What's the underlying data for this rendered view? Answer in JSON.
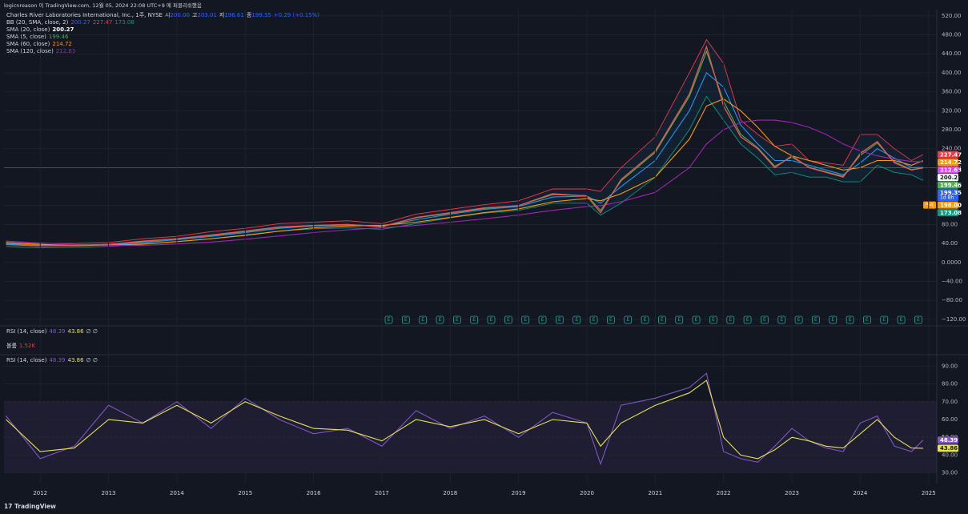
{
  "header": {
    "publisher": "logicnreason 이 TradingView.com, 12월 05, 2024 22:08 UTC+9 에 퍼블리쉬했음",
    "brand": "TradingView"
  },
  "chart_data": [
    {
      "type": "line",
      "title": "Charles River Laboratories International, Inc., 1주, NYSE",
      "ohlc": [
        {
          "name": "시",
          "value": 200,
          "label": "200.00"
        },
        {
          "name": "고",
          "value": 203.01
        },
        {
          "name": "저",
          "value": 196.61
        },
        {
          "name": "종",
          "value": 199.35
        }
      ],
      "change": "+0.29 (+0.15%)",
      "x": [
        2011.5,
        2012,
        2012.5,
        2013,
        2013.5,
        2014,
        2014.5,
        2015,
        2015.5,
        2016,
        2016.5,
        2017,
        2017.5,
        2018,
        2018.5,
        2019,
        2019.5,
        2020,
        2020.2,
        2020.5,
        2021,
        2021.5,
        2021.75,
        2022,
        2022.25,
        2022.5,
        2022.75,
        2023,
        2023.25,
        2023.5,
        2023.75,
        2024,
        2024.25,
        2024.5,
        2024.75,
        2024.92
      ],
      "close": {
        "color": "#ef5350",
        "values": [
          38,
          35,
          36,
          38,
          45,
          50,
          58,
          66,
          75,
          78,
          80,
          75,
          95,
          105,
          115,
          120,
          145,
          140,
          105,
          175,
          235,
          355,
          455,
          330,
          265,
          240,
          200,
          225,
          200,
          190,
          180,
          230,
          255,
          210,
          195,
          199.35
        ]
      },
      "bollinger": {
        "name": "BB (20, SMA, close, 2)",
        "last": [
          200.27,
          227.47,
          173.08
        ],
        "colors": [
          "#2962ff",
          "#f23645",
          "#089981"
        ],
        "upper": [
          45,
          40,
          40,
          42,
          50,
          55,
          65,
          72,
          82,
          85,
          88,
          82,
          102,
          112,
          122,
          130,
          155,
          155,
          150,
          200,
          265,
          400,
          470,
          420,
          300,
          270,
          245,
          250,
          215,
          210,
          205,
          270,
          270,
          240,
          215,
          227.47
        ],
        "lower": [
          34,
          31,
          32,
          34,
          38,
          44,
          50,
          58,
          66,
          71,
          73,
          70,
          82,
          94,
          104,
          110,
          125,
          125,
          100,
          125,
          180,
          280,
          350,
          300,
          250,
          220,
          185,
          190,
          180,
          180,
          170,
          170,
          205,
          190,
          185,
          173.08
        ]
      },
      "series": [
        {
          "name": "SMA (20, close)",
          "color": "#2196f3",
          "last": 200.27,
          "values": [
            40,
            36,
            35,
            37,
            42,
            48,
            55,
            63,
            72,
            77,
            79,
            77,
            90,
            102,
            112,
            118,
            138,
            140,
            125,
            160,
            215,
            320,
            400,
            370,
            290,
            250,
            215,
            215,
            205,
            195,
            185,
            210,
            240,
            220,
            200,
            200.27
          ]
        },
        {
          "name": "SMA (5, close)",
          "color": "#4caf50",
          "last": 199.46,
          "values": [
            38,
            35,
            36,
            38,
            44,
            50,
            57,
            65,
            74,
            78,
            80,
            76,
            94,
            104,
            114,
            120,
            143,
            141,
            110,
            172,
            232,
            350,
            445,
            340,
            270,
            242,
            203,
            222,
            201,
            191,
            182,
            226,
            252,
            212,
            196,
            199.46
          ]
        },
        {
          "name": "SMA (60, close)",
          "color": "#ff9800",
          "last": 214.72,
          "values": [
            42,
            38,
            36,
            36,
            39,
            44,
            50,
            57,
            66,
            73,
            77,
            78,
            85,
            95,
            105,
            113,
            128,
            135,
            130,
            145,
            180,
            260,
            330,
            345,
            320,
            285,
            245,
            225,
            215,
            205,
            195,
            200,
            215,
            215,
            205,
            214.72
          ]
        },
        {
          "name": "SMA (120, close)",
          "color": "#9c27b0",
          "last": 212.63,
          "values": [
            45,
            41,
            38,
            36,
            36,
            39,
            43,
            49,
            56,
            63,
            69,
            73,
            78,
            85,
            92,
            100,
            110,
            118,
            120,
            128,
            148,
            200,
            250,
            280,
            295,
            300,
            300,
            295,
            285,
            270,
            250,
            235,
            225,
            218,
            213,
            212.63
          ]
        }
      ],
      "price_labels": [
        {
          "value": 227.47,
          "color": "#f23645"
        },
        {
          "value": 214.72,
          "color": "#ff9800"
        },
        {
          "value": 212.63,
          "color": "#e040fb"
        },
        {
          "value": 200.27,
          "color": "#ffffff"
        },
        {
          "value": 199.46,
          "color": "#4caf50"
        },
        {
          "value": 199.35,
          "color": "#2962ff",
          "countdown": "1d 8h"
        },
        {
          "value": 198,
          "label": "198.00",
          "color": "#ff9800",
          "tag": "프리"
        },
        {
          "value": 173.08,
          "color": "#089981"
        }
      ],
      "earnings": {
        "label": "E",
        "x": [
          2017.1,
          2017.35,
          2017.6,
          2017.85,
          2018.1,
          2018.35,
          2018.6,
          2018.85,
          2019.1,
          2019.35,
          2019.6,
          2019.85,
          2020.1,
          2020.35,
          2020.6,
          2020.85,
          2021.1,
          2021.35,
          2021.6,
          2021.85,
          2022.1,
          2022.35,
          2022.6,
          2022.85,
          2023.1,
          2023.35,
          2023.6,
          2023.85,
          2024.1,
          2024.35,
          2024.6,
          2024.85
        ]
      },
      "xlim": [
        2011.47,
        2025.12
      ],
      "ylim": [
        -132,
        540
      ],
      "yticks": [
        {
          "value": 520,
          "label": "520.00"
        },
        {
          "value": 480,
          "label": "480.00"
        },
        {
          "value": 440,
          "label": "440.00"
        },
        {
          "value": 400,
          "label": "400.00"
        },
        {
          "value": 360,
          "label": "360.00"
        },
        {
          "value": 320,
          "label": "320.00"
        },
        {
          "value": 280,
          "label": "280.00"
        },
        {
          "value": 240,
          "label": "240.00"
        },
        {
          "value": 200,
          "label": "200.00"
        },
        {
          "value": 160,
          "label": "160.00"
        },
        {
          "value": 120,
          "label": "120.00"
        },
        {
          "value": 80,
          "label": "80.00"
        },
        {
          "value": 40,
          "label": "40.00"
        },
        {
          "value": 0,
          "label": "0.0000"
        },
        {
          "value": -40,
          "label": "−40.00"
        },
        {
          "value": -80,
          "label": "−80.00"
        },
        {
          "value": -120,
          "label": "−120.00"
        }
      ],
      "grid": true
    },
    {
      "type": "line",
      "title": "RSI (14, close)",
      "extra": "∅ ∅",
      "collapsed": [
        {
          "title": "RSI (14, close)",
          "last": [
            48.39,
            43.86
          ],
          "extra": "∅ ∅"
        },
        {
          "title": "볼륨",
          "label": "1.52K"
        }
      ],
      "x": [
        2011.5,
        2012,
        2012.5,
        2013,
        2013.5,
        2014,
        2014.5,
        2015,
        2015.5,
        2016,
        2016.5,
        2017,
        2017.5,
        2018,
        2018.5,
        2019,
        2019.5,
        2020,
        2020.2,
        2020.5,
        2021,
        2021.5,
        2021.75,
        2022,
        2022.25,
        2022.5,
        2022.75,
        2023,
        2023.25,
        2023.5,
        2023.75,
        2024,
        2024.25,
        2024.5,
        2024.75,
        2024.92
      ],
      "series": [
        {
          "color": "#7e57c2",
          "last": 48.39,
          "values": [
            62,
            38,
            45,
            68,
            58,
            70,
            55,
            72,
            60,
            52,
            55,
            45,
            65,
            55,
            62,
            50,
            64,
            58,
            35,
            68,
            72,
            78,
            86,
            42,
            38,
            36,
            45,
            55,
            48,
            44,
            42,
            58,
            62,
            45,
            42,
            48.39
          ]
        },
        {
          "color": "#e6e34a",
          "last": 43.86,
          "values": [
            60,
            42,
            44,
            60,
            58,
            68,
            58,
            70,
            62,
            55,
            54,
            48,
            60,
            56,
            60,
            52,
            60,
            58,
            45,
            58,
            68,
            75,
            82,
            50,
            40,
            38,
            43,
            50,
            48,
            45,
            44,
            52,
            60,
            50,
            44,
            43.86
          ]
        }
      ],
      "levels": [
        30,
        50,
        70
      ],
      "xlim": [
        2011.47,
        2025.12
      ],
      "ylim": [
        24,
        96
      ],
      "yticks": [
        {
          "value": 90,
          "label": "90.00"
        },
        {
          "value": 80,
          "label": "80.00"
        },
        {
          "value": 70,
          "label": "70.00"
        },
        {
          "value": 60,
          "label": "60.00"
        },
        {
          "value": 50,
          "label": "50.00"
        },
        {
          "value": 40,
          "label": "40.00"
        },
        {
          "value": 30,
          "label": "30.00"
        }
      ],
      "xticks": [
        2012,
        2013,
        2014,
        2015,
        2016,
        2017,
        2018,
        2019,
        2020,
        2021,
        2022,
        2023,
        2024,
        2025
      ],
      "grid": true
    }
  ]
}
